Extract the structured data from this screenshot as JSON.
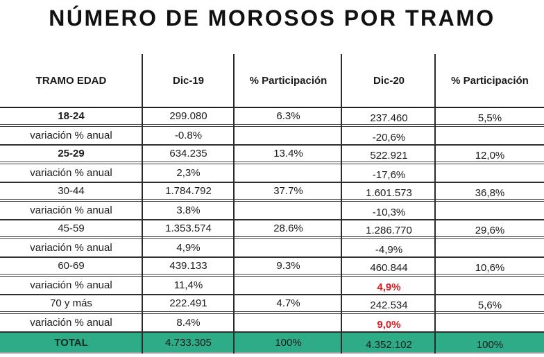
{
  "title": "NÚMERO DE MOROSOS POR TRAMO",
  "table": {
    "columns": [
      "TRAMO EDAD",
      "Dic-19",
      "% Participación",
      "Dic-20",
      "% Participación"
    ],
    "rows": [
      {
        "label": "18-24",
        "label_bold": true,
        "row_type": "age",
        "values": [
          "299.080",
          "6.3%",
          "237.460",
          "5,5%"
        ]
      },
      {
        "label": "variación % anual",
        "row_type": "variation",
        "values": [
          "-0.8%",
          "",
          "-20,6%",
          ""
        ]
      },
      {
        "label": "25-29",
        "label_bold": true,
        "row_type": "age",
        "values": [
          "634.235",
          "13.4%",
          "522.921",
          "12,0%"
        ]
      },
      {
        "label": "variación % anual",
        "row_type": "variation",
        "values": [
          "2,3%",
          "",
          "-17,6%",
          ""
        ]
      },
      {
        "label": "30-44",
        "row_type": "age",
        "values": [
          "1.784.792",
          "37.7%",
          "1.601.573",
          "36,8%"
        ]
      },
      {
        "label": "variación % anual",
        "row_type": "variation",
        "values": [
          "3.8%",
          "",
          "-10,3%",
          ""
        ]
      },
      {
        "label": "45-59",
        "row_type": "age",
        "values": [
          "1.353.574",
          "28.6%",
          "1.286.770",
          "29,6%"
        ]
      },
      {
        "label": "variación % anual",
        "row_type": "variation",
        "values": [
          "4,9%",
          "",
          "-4,9%",
          ""
        ]
      },
      {
        "label": "60-69",
        "row_type": "age",
        "values": [
          "439.133",
          "9.3%",
          "460.844",
          "10,6%"
        ]
      },
      {
        "label": "variación % anual",
        "row_type": "variation",
        "values": [
          "11,4%",
          "",
          "4,9%",
          ""
        ],
        "red_value_index": 2
      },
      {
        "label": "70 y más",
        "row_type": "age",
        "values": [
          "222.491",
          "4.7%",
          "242.534",
          "5,6%"
        ]
      },
      {
        "label": "variación % anual",
        "row_type": "variation",
        "values": [
          "8.4%",
          "",
          "9,0%",
          ""
        ],
        "red_value_index": 2
      },
      {
        "label": "TOTAL",
        "label_bold": true,
        "row_type": "total",
        "values": [
          "4.733.305",
          "100%",
          "4.352.102",
          "100%"
        ]
      }
    ],
    "colors": {
      "total_row_bg": "#2DAC87",
      "highlight_red": "#E0181E",
      "border_dark": "#2B2B2B"
    }
  },
  "chart_data": {
    "type": "table",
    "title": "NÚMERO DE MOROSOS POR TRAMO",
    "columns": [
      "TRAMO EDAD",
      "Dic-19",
      "% Participación",
      "Dic-20",
      "% Participación"
    ],
    "rows": [
      [
        "18-24",
        "299.080",
        "6.3%",
        "237.460",
        "5,5%"
      ],
      [
        "variación % anual",
        "-0.8%",
        "",
        "-20,6%",
        ""
      ],
      [
        "25-29",
        "634.235",
        "13.4%",
        "522.921",
        "12,0%"
      ],
      [
        "variación % anual",
        "2,3%",
        "",
        "-17,6%",
        ""
      ],
      [
        "30-44",
        "1.784.792",
        "37.7%",
        "1.601.573",
        "36,8%"
      ],
      [
        "variación % anual",
        "3.8%",
        "",
        "-10,3%",
        ""
      ],
      [
        "45-59",
        "1.353.574",
        "28.6%",
        "1.286.770",
        "29,6%"
      ],
      [
        "variación % anual",
        "4,9%",
        "",
        "-4,9%",
        ""
      ],
      [
        "60-69",
        "439.133",
        "9.3%",
        "460.844",
        "10,6%"
      ],
      [
        "variación % anual",
        "11,4%",
        "",
        "4,9%",
        ""
      ],
      [
        "70 y más",
        "222.491",
        "4.7%",
        "242.534",
        "5,6%"
      ],
      [
        "variación % anual",
        "8.4%",
        "",
        "9,0%",
        ""
      ],
      [
        "TOTAL",
        "4.733.305",
        "100%",
        "4.352.102",
        "100%"
      ]
    ],
    "red_highlighted_values": [
      {
        "row_label": "variación % anual (60-69)",
        "column": "Dic-20",
        "value": "4,9%"
      },
      {
        "row_label": "variación % anual (70 y más)",
        "column": "Dic-20",
        "value": "9,0%"
      }
    ],
    "total_row_background": "#2DAC87"
  }
}
